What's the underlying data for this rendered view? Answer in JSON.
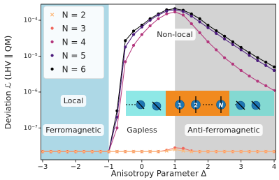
{
  "chart_data": {
    "type": "line",
    "xlabel": "Anisotropy Parameter Δ",
    "ylabel": "Deviation ℒ (LHV ∥ QM)",
    "log_y": true,
    "xlim": [
      -3.05,
      4.05
    ],
    "ylim": [
      1.3e-08,
      0.00028
    ],
    "xticks": [
      {
        "value": -3,
        "label": "−3"
      },
      {
        "value": -2,
        "label": "−2"
      },
      {
        "value": -1,
        "label": "−1"
      },
      0,
      1,
      2,
      3,
      4
    ],
    "yticks": [
      {
        "value": 1e-07,
        "label": "10⁻⁷"
      },
      {
        "value": 1e-06,
        "label": "10⁻⁶"
      },
      {
        "value": 1e-05,
        "label": "10⁻⁵"
      },
      {
        "value": 0.0001,
        "label": "10⁻⁴"
      }
    ],
    "legend": "upper left",
    "x": [
      -3,
      -2.75,
      -2.5,
      -2.25,
      -2,
      -1.75,
      -1.5,
      -1.25,
      -1,
      -0.75,
      -0.5,
      -0.25,
      0,
      0.25,
      0.5,
      0.75,
      1,
      1.25,
      1.5,
      1.75,
      2,
      2.25,
      2.5,
      2.75,
      3,
      3.25,
      3.5,
      3.75,
      4
    ],
    "series": [
      {
        "name": "N = 2",
        "color": "#fdb97a",
        "marker": "x",
        "values": [
          2.2e-08,
          2.2e-08,
          2.2e-08,
          2.2e-08,
          2.2e-08,
          2.2e-08,
          2.2e-08,
          2.2e-08,
          2.2e-08,
          2.2e-08,
          2.2e-08,
          2.2e-08,
          2.2e-08,
          2.2e-08,
          2.2e-08,
          2.3e-08,
          2.5e-08,
          2.3e-08,
          2.2e-08,
          2.2e-08,
          2.2e-08,
          2.2e-08,
          2.2e-08,
          2.2e-08,
          2.2e-08,
          2.2e-08,
          2.2e-08,
          2.2e-08,
          2.2e-08
        ]
      },
      {
        "name": "N = 3",
        "color": "#f0675c",
        "marker": "o",
        "values": [
          2.2e-08,
          2.2e-08,
          2.2e-08,
          2.2e-08,
          2.2e-08,
          2.2e-08,
          2.2e-08,
          2.2e-08,
          2.2e-08,
          2.2e-08,
          2.2e-08,
          2.2e-08,
          2.2e-08,
          2.2e-08,
          2.2e-08,
          2.4e-08,
          2.8e-08,
          2.7e-08,
          2.3e-08,
          2.2e-08,
          2.2e-08,
          2.2e-08,
          2.2e-08,
          2.2e-08,
          2.2e-08,
          2.2e-08,
          2.2e-08,
          2.2e-08,
          2.2e-08
        ]
      },
      {
        "name": "N = 4",
        "color": "#b3357c",
        "marker": "o",
        "values": [
          2.2e-08,
          2.2e-08,
          2.2e-08,
          2.2e-08,
          2.2e-08,
          2.2e-08,
          2.2e-08,
          2.2e-08,
          2.2e-08,
          1e-07,
          7e-06,
          2e-05,
          4e-05,
          7e-05,
          0.00011,
          0.00015,
          0.00017,
          0.00014,
          8e-05,
          4.5e-05,
          2.5e-05,
          1.5e-05,
          9e-06,
          6e-06,
          4e-06,
          2.8e-06,
          2e-06,
          1.5e-06,
          1.1e-06
        ]
      },
      {
        "name": "N = 5",
        "color": "#4b1a7c",
        "marker": "o",
        "values": [
          2.2e-08,
          2.2e-08,
          2.2e-08,
          2.2e-08,
          2.2e-08,
          2.2e-08,
          2.2e-08,
          2.2e-08,
          2.2e-08,
          2e-07,
          1.8e-05,
          4e-05,
          6.5e-05,
          0.0001,
          0.00014,
          0.00018,
          0.000195,
          0.000175,
          0.00013,
          9e-05,
          6.2e-05,
          4.3e-05,
          3e-05,
          2.1e-05,
          1.5e-05,
          1.05e-05,
          7.5e-06,
          5.5e-06,
          4e-06
        ]
      },
      {
        "name": "N = 6",
        "color": "#000000",
        "marker": "o",
        "values": [
          2.2e-08,
          2.2e-08,
          2.2e-08,
          2.2e-08,
          2.2e-08,
          2.2e-08,
          2.2e-08,
          2.2e-08,
          2.2e-08,
          3e-07,
          2.7e-05,
          5e-05,
          7.3e-05,
          0.00011,
          0.00015,
          0.000195,
          0.00021,
          0.00019,
          0.00015,
          0.00011,
          7.3e-05,
          5.1e-05,
          3.6e-05,
          2.5e-05,
          1.75e-05,
          1.25e-05,
          9.1e-06,
          6.8e-06,
          5e-06
        ]
      }
    ],
    "regions": [
      {
        "xrange": [
          -3.05,
          -1
        ],
        "color": "#add8e6"
      },
      {
        "xrange": [
          1,
          4.05
        ],
        "color": "#d3d3d3"
      }
    ],
    "annotations": [
      "Local",
      "Ferromagnetic",
      "Gapless",
      "Anti-ferromagnetic",
      "Non-local"
    ],
    "inset_labels": [
      "1",
      "2",
      "N"
    ]
  }
}
